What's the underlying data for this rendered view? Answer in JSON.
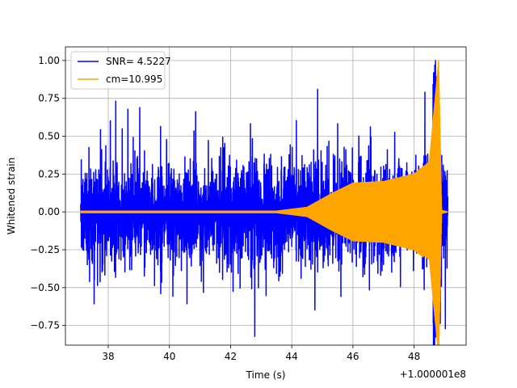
{
  "chart_data": {
    "type": "line",
    "xlabel": "Time (s)",
    "ylabel": "Whitened strain",
    "x_offset_label": "+1.000001e8",
    "xlim": [
      36.6,
      49.7
    ],
    "ylim": [
      -0.88,
      1.09
    ],
    "xticks": [
      38,
      40,
      42,
      44,
      46,
      48
    ],
    "yticks": [
      -0.75,
      -0.5,
      -0.25,
      0.0,
      0.25,
      0.5,
      0.75,
      1.0
    ],
    "ytick_labels": [
      "−0.75",
      "−0.50",
      "−0.25",
      "0.00",
      "0.25",
      "0.50",
      "0.75",
      "1.00"
    ],
    "grid": true,
    "legend_position": "top-left",
    "series": [
      {
        "name": "SNR= 4.5227",
        "color": "#0000ff",
        "description": "whitened data, noise band approx ±0.4 with spikes to ~0.8 / -0.79",
        "x_range": [
          37.1,
          49.1
        ],
        "peak_time": 48.7,
        "peak_value": 1.0
      },
      {
        "name": "cm=10.995",
        "color": "#ffa500",
        "description": "chirp template amplitude envelope",
        "envelope": [
          [
            37.1,
            0.005
          ],
          [
            43.5,
            0.005
          ],
          [
            44.5,
            0.03
          ],
          [
            45.3,
            0.12
          ],
          [
            46.0,
            0.19
          ],
          [
            47.0,
            0.2
          ],
          [
            48.0,
            0.25
          ],
          [
            48.5,
            0.33
          ],
          [
            48.8,
            1.0
          ],
          [
            48.9,
            0.01
          ],
          [
            49.1,
            0.0
          ]
        ]
      }
    ]
  }
}
